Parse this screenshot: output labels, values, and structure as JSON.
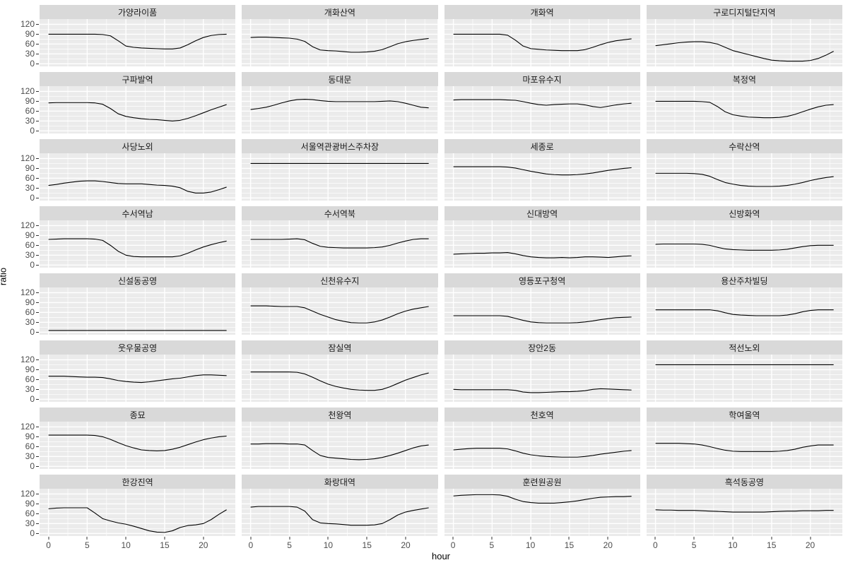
{
  "axes": {
    "x_label": "hour",
    "y_label": "ratio",
    "x_ticks": [
      0,
      5,
      10,
      15,
      20
    ],
    "y_ticks": [
      120,
      90,
      60,
      30,
      0
    ]
  },
  "colors": {
    "panel_bg": "#EBEBEB",
    "strip_bg": "#D9D9D9",
    "grid": "#FFFFFF",
    "line": "#000000",
    "tick_text": "#4D4D4D",
    "background": "#FFFFFF"
  },
  "chart_data": {
    "type": "line",
    "layout": "facet_grid_8x4",
    "title": "",
    "xlabel": "hour",
    "ylabel": "ratio",
    "x": [
      0,
      1,
      2,
      3,
      4,
      5,
      6,
      7,
      8,
      9,
      10,
      11,
      12,
      13,
      14,
      15,
      16,
      17,
      18,
      19,
      20,
      21,
      22,
      23
    ],
    "x_range": [
      -1.15,
      24.15
    ],
    "y_range": [
      -8,
      136
    ],
    "x_major_gridlines": [
      0,
      5,
      10,
      15,
      20
    ],
    "x_minor_gridlines": [
      2.5,
      7.5,
      12.5,
      17.5,
      22.5
    ],
    "y_major_gridlines": [
      0,
      30,
      60,
      90,
      120
    ],
    "y_minor_gridlines": [
      15,
      45,
      75,
      105
    ],
    "legend": "none",
    "series": [
      {
        "name": "가양라이품",
        "values": [
          90,
          90,
          90,
          90,
          90,
          90,
          90,
          89,
          85,
          70,
          54,
          50,
          48,
          47,
          46,
          45,
          45,
          48,
          58,
          70,
          80,
          86,
          89,
          90
        ]
      },
      {
        "name": "개화산역",
        "values": [
          80,
          81,
          81,
          80,
          79,
          78,
          75,
          68,
          52,
          42,
          40,
          39,
          37,
          35,
          35,
          36,
          38,
          43,
          52,
          61,
          67,
          71,
          74,
          77
        ]
      },
      {
        "name": "개화역",
        "values": [
          90,
          90,
          90,
          90,
          90,
          90,
          90,
          87,
          72,
          54,
          46,
          44,
          42,
          41,
          40,
          40,
          40,
          43,
          50,
          58,
          65,
          70,
          73,
          76
        ]
      },
      {
        "name": "구로디지털단지역",
        "values": [
          55,
          58,
          61,
          64,
          66,
          67,
          67,
          65,
          60,
          50,
          40,
          34,
          28,
          22,
          16,
          11,
          9,
          8,
          8,
          8,
          10,
          16,
          26,
          38
        ]
      },
      {
        "name": "구파발역",
        "values": [
          85,
          86,
          86,
          86,
          86,
          86,
          85,
          81,
          68,
          52,
          44,
          40,
          37,
          35,
          34,
          32,
          30,
          32,
          38,
          46,
          55,
          64,
          72,
          80
        ]
      },
      {
        "name": "동대문",
        "values": [
          65,
          68,
          72,
          78,
          85,
          91,
          95,
          96,
          95,
          92,
          90,
          89,
          89,
          89,
          89,
          89,
          89,
          90,
          91,
          89,
          84,
          78,
          72,
          70
        ]
      },
      {
        "name": "마포유수지",
        "values": [
          94,
          95,
          95,
          95,
          95,
          95,
          95,
          94,
          93,
          89,
          84,
          80,
          78,
          80,
          81,
          82,
          82,
          79,
          74,
          71,
          75,
          79,
          82,
          84
        ]
      },
      {
        "name": "복정역",
        "values": [
          90,
          90,
          90,
          90,
          90,
          90,
          89,
          87,
          74,
          58,
          49,
          45,
          42,
          41,
          40,
          40,
          41,
          44,
          50,
          58,
          66,
          73,
          78,
          80
        ]
      },
      {
        "name": "사당노외",
        "values": [
          38,
          41,
          45,
          48,
          51,
          52,
          52,
          50,
          47,
          44,
          43,
          43,
          43,
          41,
          39,
          38,
          36,
          31,
          20,
          15,
          15,
          18,
          25,
          33
        ]
      },
      {
        "name": "서울역관광버스주차장",
        "values": [
          105,
          105,
          105,
          105,
          105,
          105,
          105,
          105,
          105,
          105,
          105,
          105,
          105,
          105,
          105,
          105,
          105,
          105,
          105,
          105,
          105,
          105,
          105,
          105
        ]
      },
      {
        "name": "세종로",
        "values": [
          95,
          95,
          95,
          95,
          95,
          95,
          95,
          94,
          91,
          86,
          81,
          77,
          73,
          71,
          70,
          70,
          71,
          73,
          76,
          80,
          84,
          87,
          90,
          92
        ]
      },
      {
        "name": "수락산역",
        "values": [
          75,
          75,
          75,
          75,
          75,
          74,
          72,
          66,
          56,
          47,
          42,
          38,
          36,
          35,
          35,
          35,
          36,
          38,
          42,
          47,
          53,
          58,
          62,
          65
        ]
      },
      {
        "name": "수서역남",
        "values": [
          78,
          79,
          80,
          80,
          80,
          80,
          79,
          75,
          60,
          42,
          30,
          26,
          25,
          25,
          25,
          25,
          25,
          28,
          36,
          46,
          55,
          62,
          68,
          73
        ]
      },
      {
        "name": "수서역북",
        "values": [
          78,
          78,
          78,
          78,
          78,
          79,
          80,
          77,
          66,
          57,
          54,
          53,
          52,
          52,
          52,
          52,
          53,
          55,
          60,
          67,
          73,
          78,
          80,
          80
        ]
      },
      {
        "name": "신대방역",
        "values": [
          33,
          34,
          35,
          36,
          36,
          37,
          37,
          38,
          34,
          29,
          25,
          23,
          22,
          22,
          23,
          22,
          23,
          25,
          25,
          24,
          23,
          25,
          27,
          28
        ]
      },
      {
        "name": "신방화역",
        "values": [
          63,
          64,
          64,
          64,
          64,
          64,
          63,
          60,
          54,
          49,
          47,
          46,
          45,
          45,
          45,
          45,
          46,
          48,
          52,
          56,
          59,
          60,
          60,
          60
        ]
      },
      {
        "name": "신설동공영",
        "values": [
          5,
          5,
          5,
          5,
          5,
          5,
          5,
          5,
          5,
          5,
          5,
          5,
          5,
          5,
          5,
          5,
          5,
          5,
          5,
          5,
          5,
          5,
          5,
          5
        ]
      },
      {
        "name": "신천유수지",
        "values": [
          80,
          80,
          80,
          79,
          78,
          78,
          78,
          74,
          64,
          54,
          46,
          38,
          33,
          29,
          28,
          28,
          31,
          37,
          46,
          56,
          64,
          70,
          74,
          78
        ]
      },
      {
        "name": "영등포구청역",
        "values": [
          50,
          50,
          50,
          50,
          50,
          50,
          50,
          48,
          42,
          36,
          31,
          29,
          28,
          28,
          28,
          28,
          29,
          31,
          34,
          38,
          41,
          44,
          45,
          46
        ]
      },
      {
        "name": "용산주차빌딩",
        "values": [
          68,
          68,
          68,
          68,
          68,
          68,
          68,
          68,
          65,
          59,
          54,
          52,
          51,
          50,
          50,
          50,
          50,
          52,
          56,
          62,
          66,
          68,
          68,
          68
        ]
      },
      {
        "name": "웃우물공영",
        "values": [
          70,
          70,
          70,
          69,
          68,
          67,
          67,
          66,
          62,
          57,
          54,
          52,
          51,
          53,
          56,
          59,
          62,
          64,
          68,
          72,
          74,
          74,
          73,
          72
        ]
      },
      {
        "name": "잠실역",
        "values": [
          83,
          83,
          83,
          83,
          83,
          83,
          82,
          77,
          67,
          56,
          46,
          39,
          34,
          30,
          28,
          27,
          27,
          30,
          38,
          48,
          58,
          66,
          74,
          80
        ]
      },
      {
        "name": "장안2동",
        "values": [
          30,
          29,
          29,
          29,
          29,
          29,
          29,
          29,
          27,
          22,
          20,
          20,
          21,
          22,
          23,
          23,
          24,
          26,
          30,
          32,
          31,
          30,
          29,
          28
        ]
      },
      {
        "name": "적선노외",
        "values": [
          105,
          105,
          105,
          105,
          105,
          105,
          105,
          105,
          105,
          105,
          105,
          105,
          105,
          105,
          105,
          105,
          105,
          105,
          105,
          105,
          105,
          105,
          105,
          105
        ]
      },
      {
        "name": "종묘",
        "values": [
          95,
          95,
          95,
          95,
          95,
          95,
          94,
          90,
          82,
          72,
          63,
          56,
          50,
          48,
          47,
          48,
          52,
          58,
          66,
          74,
          81,
          86,
          90,
          92
        ]
      },
      {
        "name": "천왕역",
        "values": [
          68,
          68,
          69,
          69,
          69,
          68,
          68,
          65,
          48,
          33,
          27,
          25,
          23,
          21,
          20,
          21,
          23,
          27,
          33,
          40,
          48,
          56,
          62,
          65
        ]
      },
      {
        "name": "천호역",
        "values": [
          50,
          52,
          54,
          55,
          55,
          55,
          55,
          53,
          47,
          40,
          35,
          32,
          30,
          29,
          28,
          28,
          28,
          30,
          33,
          37,
          40,
          43,
          46,
          48
        ]
      },
      {
        "name": "학여울역",
        "values": [
          70,
          70,
          70,
          70,
          69,
          68,
          65,
          60,
          54,
          49,
          46,
          45,
          45,
          45,
          45,
          45,
          46,
          48,
          52,
          58,
          62,
          65,
          65,
          65
        ]
      },
      {
        "name": "한강진역",
        "values": [
          75,
          77,
          78,
          78,
          78,
          78,
          62,
          45,
          38,
          32,
          28,
          22,
          15,
          8,
          4,
          3,
          8,
          18,
          24,
          26,
          30,
          42,
          58,
          72
        ]
      },
      {
        "name": "화랑대역",
        "values": [
          80,
          82,
          82,
          82,
          82,
          82,
          80,
          68,
          42,
          32,
          30,
          29,
          27,
          25,
          25,
          25,
          26,
          30,
          42,
          56,
          65,
          70,
          74,
          78
        ]
      },
      {
        "name": "훈련원공원",
        "values": [
          114,
          116,
          117,
          118,
          118,
          118,
          117,
          113,
          104,
          97,
          94,
          92,
          92,
          92,
          94,
          96,
          99,
          103,
          107,
          110,
          111,
          112,
          112,
          113
        ]
      },
      {
        "name": "흑석동공영",
        "values": [
          72,
          71,
          71,
          70,
          70,
          70,
          69,
          68,
          67,
          66,
          65,
          65,
          65,
          65,
          65,
          66,
          67,
          68,
          68,
          69,
          69,
          69,
          70,
          70
        ]
      }
    ]
  }
}
